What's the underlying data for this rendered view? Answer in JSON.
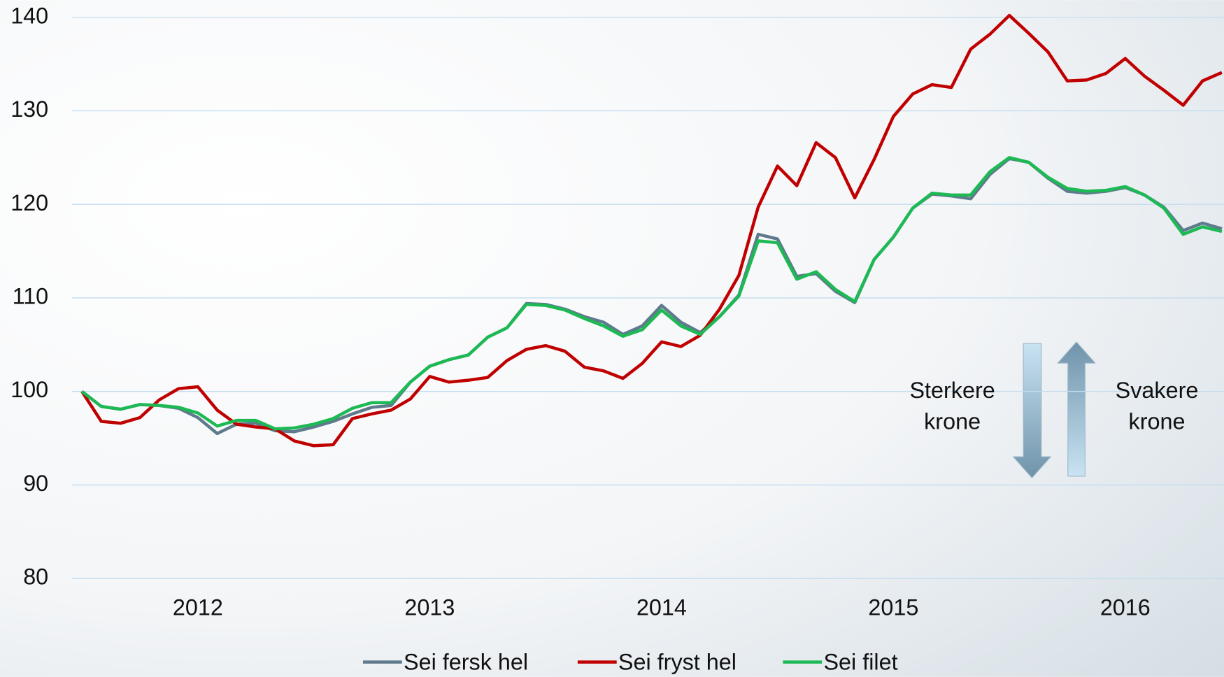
{
  "chart_data": {
    "type": "line",
    "categories": [
      null,
      null,
      null,
      null,
      null,
      null,
      "2012",
      null,
      null,
      null,
      null,
      null,
      null,
      null,
      null,
      null,
      null,
      null,
      "2013",
      null,
      null,
      null,
      null,
      null,
      null,
      null,
      null,
      null,
      null,
      null,
      "2014",
      null,
      null,
      null,
      null,
      null,
      null,
      null,
      null,
      null,
      null,
      null,
      "2015",
      null,
      null,
      null,
      null,
      null,
      null,
      null,
      null,
      null,
      null,
      null,
      "2016",
      null,
      null,
      null,
      null,
      null
    ],
    "series": [
      {
        "name": "Sei fersk hel",
        "color": "#5f7a8c",
        "values": [
          100,
          98.4,
          98.1,
          98.6,
          98.5,
          98.2,
          97.2,
          95.5,
          96.5,
          96.6,
          95.8,
          95.7,
          96.2,
          96.8,
          97.6,
          98.3,
          98.5,
          101.0,
          102.7,
          103.4,
          103.9,
          105.8,
          106.8,
          109.4,
          109.3,
          108.8,
          108.0,
          107.4,
          106.1,
          107.0,
          109.2,
          107.4,
          106.3,
          108.0,
          110.3,
          116.8,
          116.3,
          112.3,
          112.6,
          110.7,
          109.5,
          114.1,
          116.5,
          119.6,
          121.1,
          120.9,
          120.6,
          123.2,
          124.9,
          124.5,
          122.8,
          121.4,
          121.2,
          121.4,
          121.8,
          121.0,
          119.7,
          117.2,
          118.0,
          117.4
        ]
      },
      {
        "name": "Sei fryst hel",
        "color": "#c00000",
        "values": [
          100,
          96.8,
          96.6,
          97.2,
          99.1,
          100.3,
          100.5,
          98.0,
          96.5,
          96.2,
          96.0,
          94.7,
          94.2,
          94.3,
          97.1,
          97.6,
          98.0,
          99.2,
          101.6,
          101.0,
          101.2,
          101.5,
          103.3,
          104.5,
          104.9,
          104.3,
          102.6,
          102.2,
          101.4,
          103.0,
          105.3,
          104.8,
          106.0,
          108.8,
          112.4,
          119.7,
          124.1,
          122.0,
          126.6,
          125.0,
          120.7,
          124.8,
          129.4,
          131.8,
          132.8,
          132.5,
          136.6,
          138.2,
          140.2,
          138.3,
          136.3,
          133.2,
          133.3,
          134.0,
          135.6,
          133.7,
          132.2,
          130.6,
          133.2,
          134.1
        ]
      },
      {
        "name": "Sei filet",
        "color": "#1db954",
        "values": [
          100,
          98.4,
          98.1,
          98.6,
          98.5,
          98.3,
          97.7,
          96.3,
          96.9,
          96.9,
          96.0,
          96.1,
          96.5,
          97.1,
          98.2,
          98.8,
          98.8,
          101.0,
          102.7,
          103.4,
          103.9,
          105.8,
          106.8,
          109.3,
          109.2,
          108.7,
          107.8,
          107.0,
          105.9,
          106.6,
          108.7,
          107.0,
          106.1,
          108.0,
          110.2,
          116.1,
          115.9,
          112.0,
          112.8,
          110.9,
          109.6,
          114.1,
          116.5,
          119.6,
          121.2,
          121.0,
          121.0,
          123.5,
          125.0,
          124.5,
          122.9,
          121.7,
          121.4,
          121.5,
          121.9,
          121.0,
          119.6,
          116.8,
          117.6,
          117.1
        ]
      }
    ],
    "ylim": [
      80,
      140
    ],
    "yticks": [
      80,
      90,
      100,
      110,
      120,
      130,
      140
    ],
    "grid": true,
    "legend": "bottom",
    "annotations": [
      {
        "lines": [
          "Sterkere",
          "krone"
        ]
      },
      {
        "lines": [
          "Svakere",
          "krone"
        ]
      }
    ]
  }
}
